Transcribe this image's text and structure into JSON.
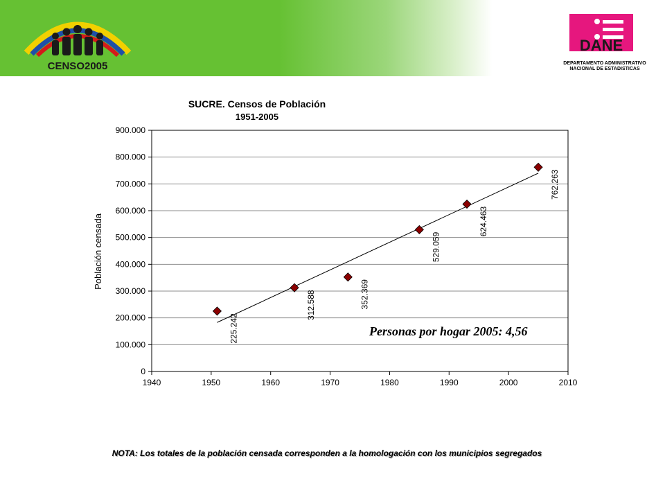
{
  "header": {
    "censo_logo_text": "CENSO2005",
    "dane_logo_text": "DANE",
    "dane_subtitle_line1": "DEPARTAMENTO ADMINISTRATIVO",
    "dane_subtitle_line2": "NACIONAL DE ESTADISTICAS",
    "colors": {
      "green": "#66c133",
      "dane_pink": "#e6177e"
    }
  },
  "chart_data": {
    "type": "scatter",
    "title": "SUCRE. Censos de Población",
    "subtitle": "1951-2005",
    "xlabel": "",
    "ylabel": "Población censada",
    "xlim": [
      1940,
      2010
    ],
    "ylim": [
      0,
      900000
    ],
    "x_ticks": [
      "1940",
      "1950",
      "1960",
      "1970",
      "1980",
      "1990",
      "2000",
      "2010"
    ],
    "y_ticks": [
      "0",
      "100.000",
      "200.000",
      "300.000",
      "400.000",
      "500.000",
      "600.000",
      "700.000",
      "800.000",
      "900.000"
    ],
    "grid": "horizontal",
    "marker_color": "#8b0000",
    "points": [
      {
        "x": 1951,
        "y": 225242,
        "label": "225.242"
      },
      {
        "x": 1964,
        "y": 312588,
        "label": "312.588"
      },
      {
        "x": 1973,
        "y": 352369,
        "label": "352.369"
      },
      {
        "x": 1985,
        "y": 529059,
        "label": "529.059"
      },
      {
        "x": 1993,
        "y": 624463,
        "label": "624.463"
      },
      {
        "x": 2005,
        "y": 762263,
        "label": "762.263"
      }
    ],
    "trendline": {
      "x1": 1951,
      "y1": 183000,
      "x2": 2005,
      "y2": 740000
    },
    "annotation": "Personas por hogar 2005: 4,56"
  },
  "note": "NOTA: Los totales de la población censada corresponden a la homologación con los municipios segregados"
}
